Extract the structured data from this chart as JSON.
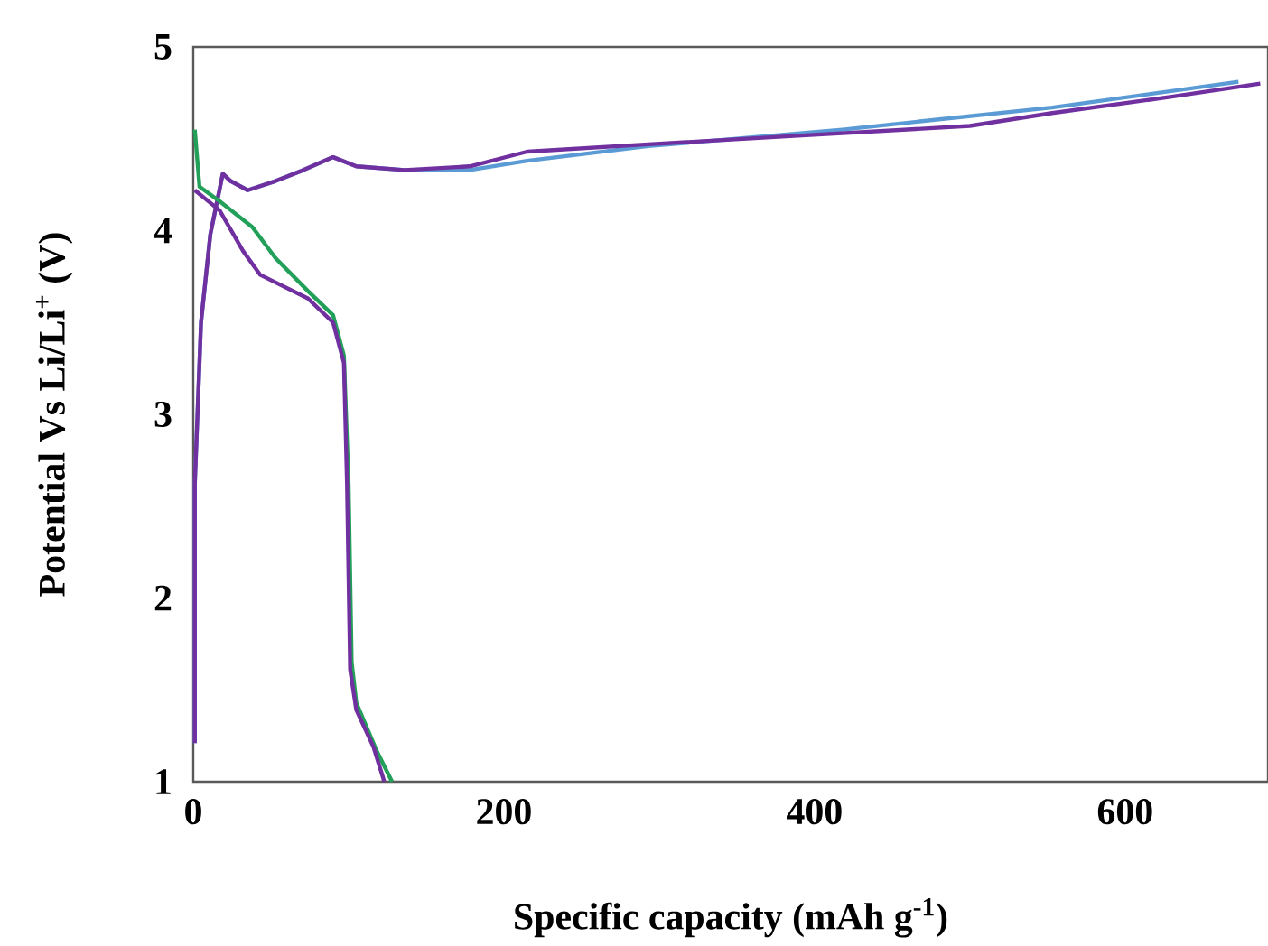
{
  "chart_data": {
    "type": "line",
    "xlabel": "Specific capacity (mAh g$^{-1}$)",
    "ylabel": "Potential Vs Li/Li$^{+}$  (V)",
    "xlim": [
      0,
      692
    ],
    "ylim": [
      1,
      5
    ],
    "xticks": [
      0,
      200,
      400,
      600
    ],
    "yticks": [
      1,
      2,
      3,
      4,
      5
    ],
    "grid": false,
    "marker": "none",
    "line_style": "solid",
    "series": [
      {
        "color": "#5b9bd5",
        "x": [
          1,
          1,
          5,
          11,
          19,
          24,
          35,
          53,
          71,
          90,
          105,
          136,
          178,
          215,
          293,
          418,
          553,
          673
        ],
        "values": [
          1.21,
          2.62,
          3.5,
          3.98,
          4.31,
          4.27,
          4.22,
          4.27,
          4.33,
          4.4,
          4.35,
          4.33,
          4.33,
          4.38,
          4.46,
          4.55,
          4.67,
          4.81
        ]
      },
      {
        "color": "#7030a0",
        "x": [
          1,
          1,
          5,
          11,
          19,
          24,
          35,
          53,
          71,
          90,
          105,
          136,
          178,
          215,
          293,
          397,
          500,
          553,
          631,
          687
        ],
        "values": [
          1.21,
          2.62,
          3.5,
          3.98,
          4.31,
          4.27,
          4.22,
          4.27,
          4.33,
          4.4,
          4.35,
          4.33,
          4.35,
          4.43,
          4.47,
          4.52,
          4.57,
          4.64,
          4.73,
          4.8
        ]
      },
      {
        "color": "#22a05a",
        "x": [
          1,
          4,
          17,
          38,
          53,
          74,
          90,
          97,
          100,
          102,
          105,
          118,
          128
        ],
        "values": [
          4.55,
          4.24,
          4.16,
          4.02,
          3.85,
          3.67,
          3.54,
          3.32,
          2.62,
          1.65,
          1.43,
          1.17,
          1.0
        ]
      },
      {
        "color": "#7030a0",
        "x": [
          1,
          17,
          32,
          43,
          74,
          90,
          97,
          99,
          101,
          105,
          116,
          123
        ],
        "values": [
          4.22,
          4.11,
          3.89,
          3.76,
          3.63,
          3.5,
          3.28,
          2.62,
          1.61,
          1.39,
          1.19,
          1.0
        ]
      }
    ]
  }
}
